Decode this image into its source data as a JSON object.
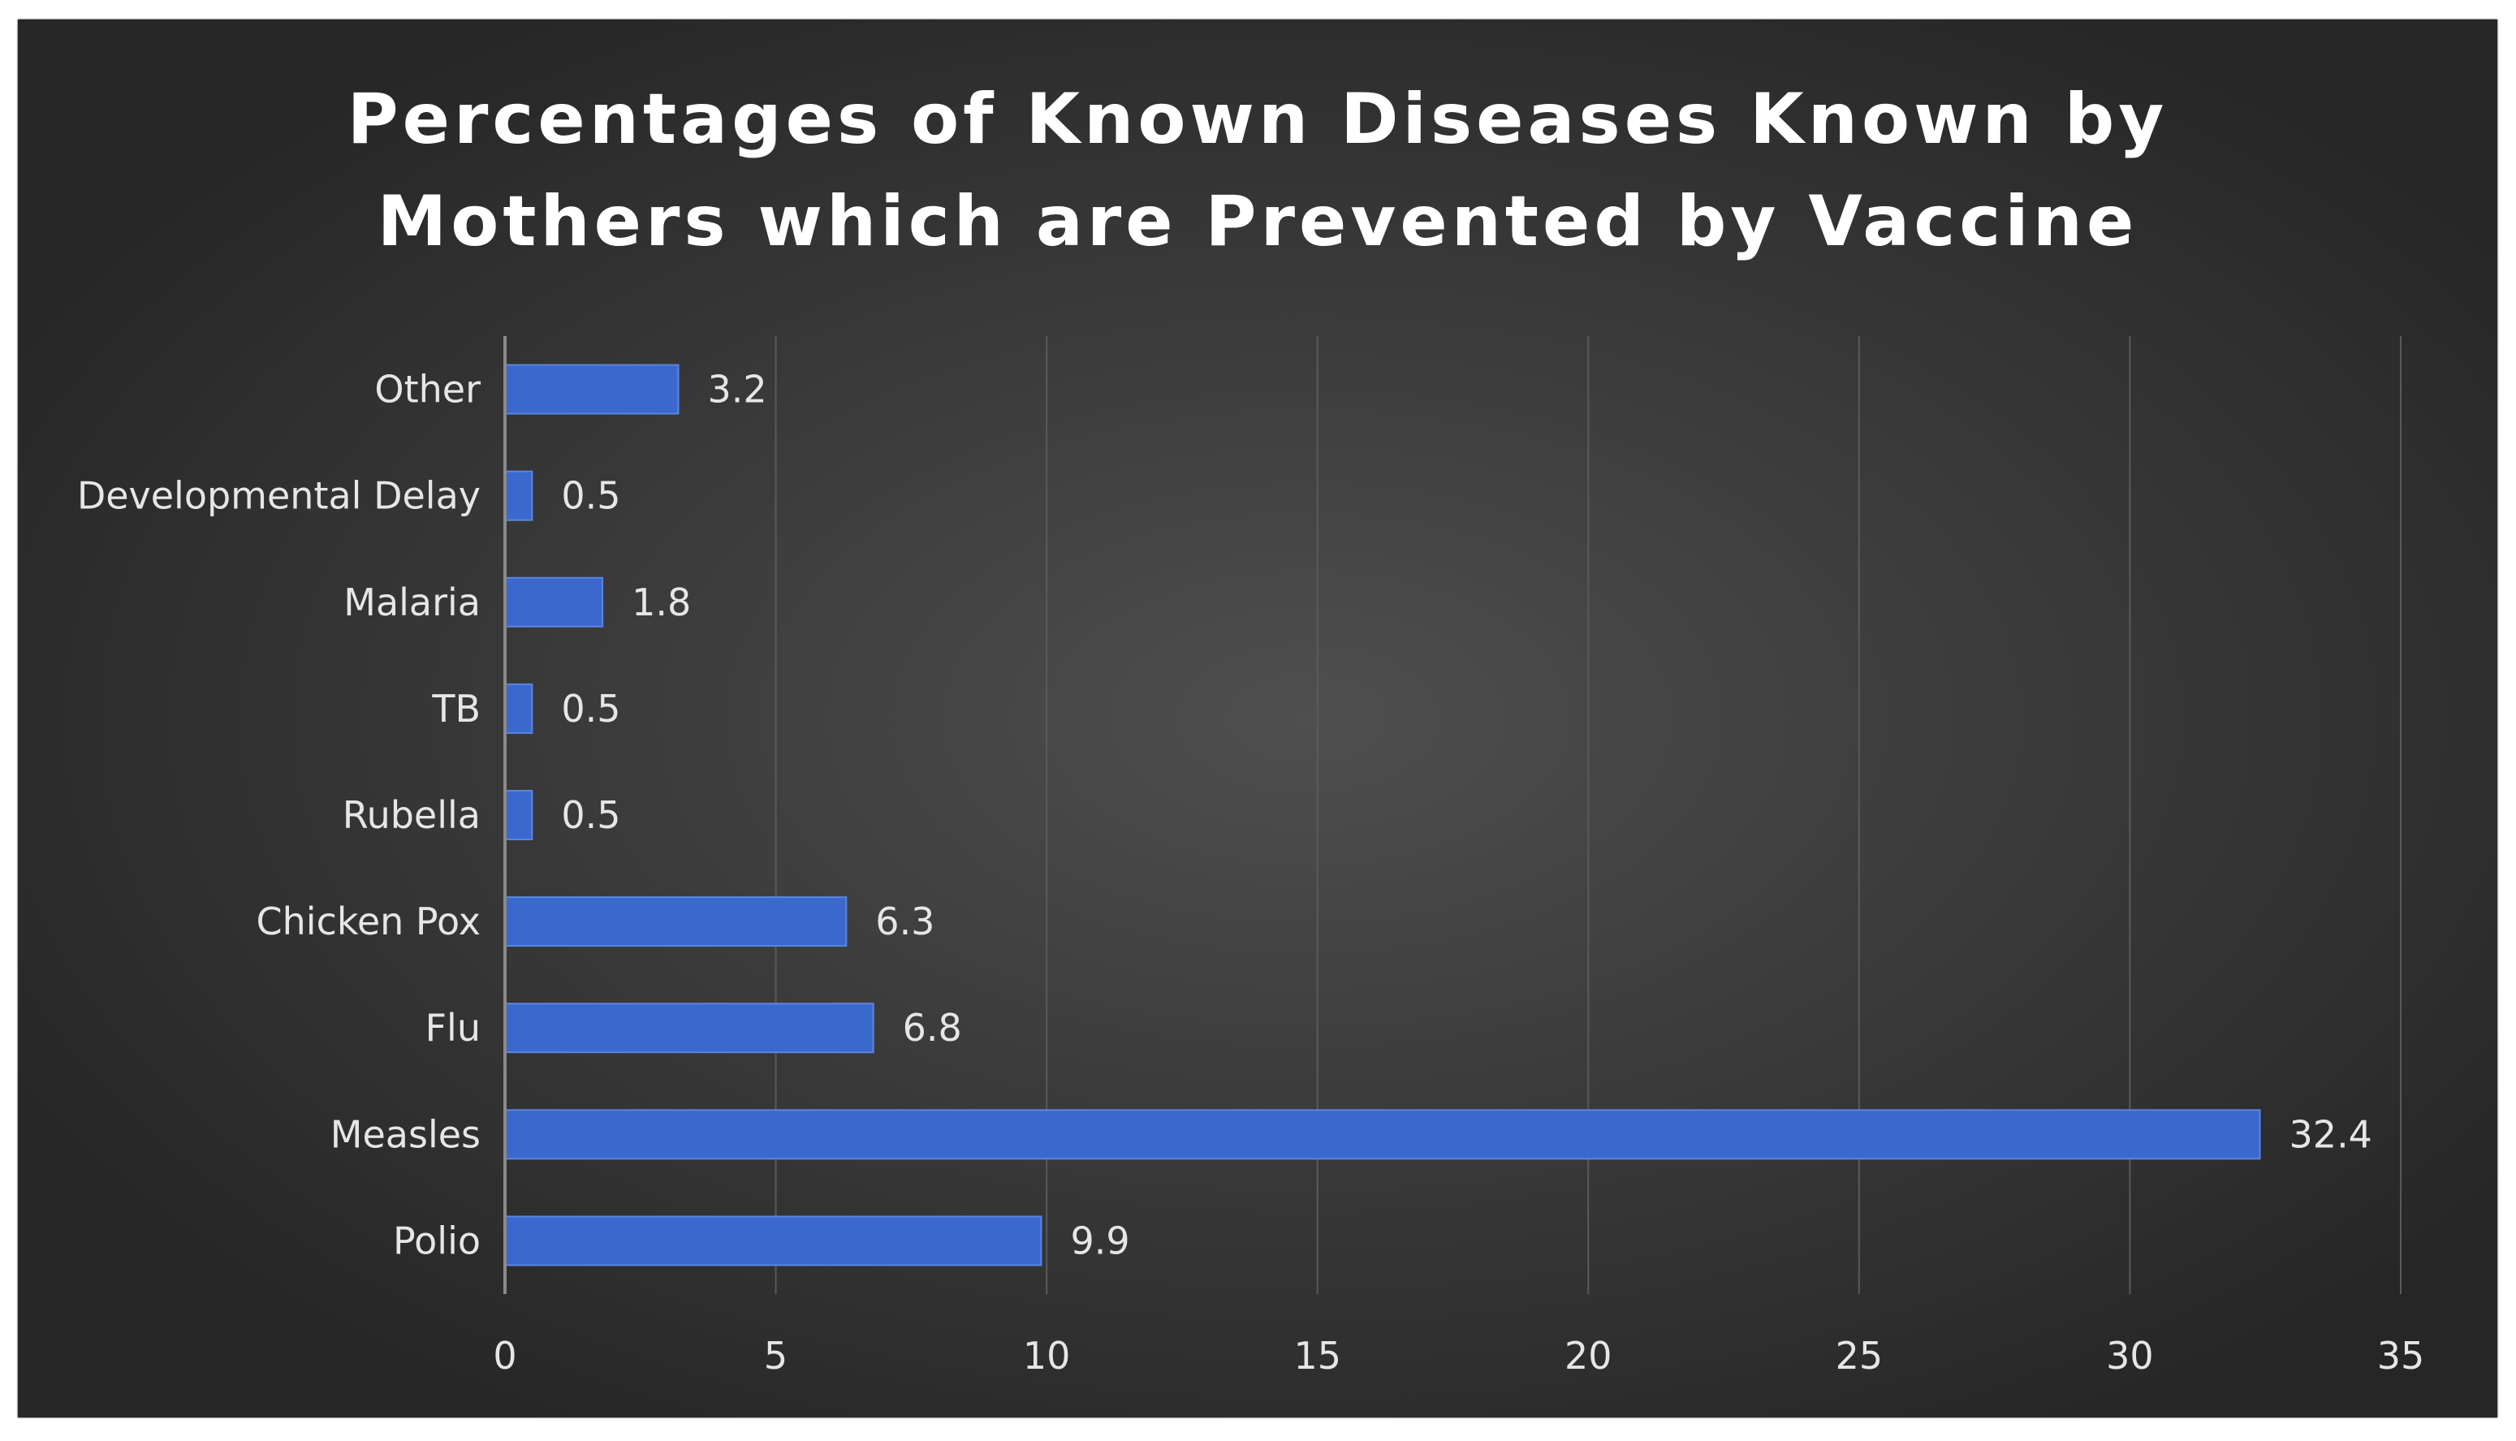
{
  "chart_data": {
    "type": "bar",
    "orientation": "horizontal",
    "title": "Percentages of Known Diseases Known by\nMothers which are Prevented by Vaccine",
    "xlabel": "",
    "ylabel": "",
    "categories": [
      "Polio",
      "Measles",
      "Flu",
      "Chicken Pox",
      "Rubella",
      "TB",
      "Malaria",
      "Developmental Delay",
      "Other"
    ],
    "values": [
      9.9,
      32.4,
      6.8,
      6.3,
      0.5,
      0.5,
      1.8,
      0.5,
      3.2
    ],
    "value_labels": [
      "9.9",
      "32.4",
      "6.8",
      "6.3",
      "0.5",
      "0.5",
      "1.8",
      "0.5",
      "3.2"
    ],
    "xlim": [
      0,
      35
    ],
    "x_ticks": [
      0,
      5,
      10,
      15,
      20,
      25,
      30,
      35
    ],
    "x_tick_labels": [
      "0",
      "5",
      "10",
      "15",
      "20",
      "25",
      "30",
      "35"
    ],
    "grid": "vertical",
    "legend": "none",
    "colors": {
      "bar": "#3a68cc",
      "bar_edge": "#5b86e0",
      "background": "#3a3a3a",
      "text": "#e6e6e6",
      "grid": "#5a5a5a",
      "axis": "#8a8a8a"
    }
  }
}
